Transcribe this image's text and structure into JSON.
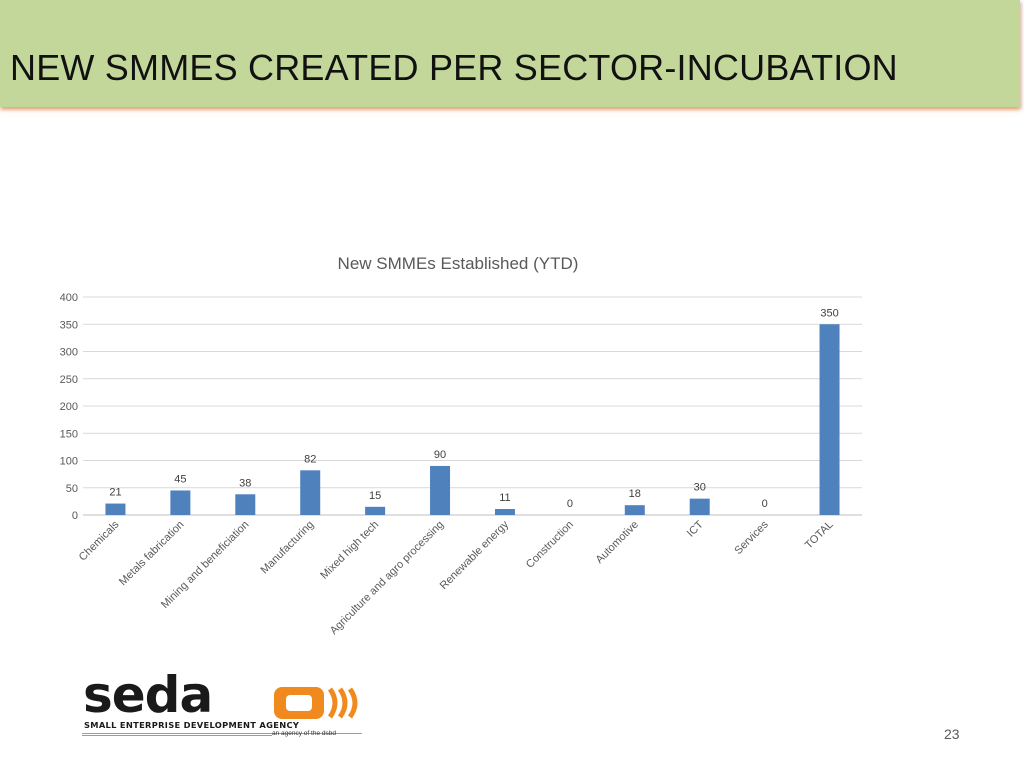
{
  "slide": {
    "title": "NEW SMMES CREATED PER SECTOR-INCUBATION",
    "page_number": "23"
  },
  "logo": {
    "wordmark": "seda",
    "tagline": "SMALL ENTERPRISE DEVELOPMENT AGENCY",
    "subline": "an agency of the dsbd",
    "colors": {
      "text": "#1a1a1a",
      "orange": "#f08a1e",
      "green": "#8fb04a"
    }
  },
  "colors": {
    "title_bar": "#c4d79b",
    "bar": "#4f81bd",
    "gridline": "#d9d9d9",
    "axis_text": "#595959"
  },
  "chart_data": {
    "type": "bar",
    "title": "New SMMEs Established (YTD)",
    "xlabel": "",
    "ylabel": "",
    "categories": [
      "Chemicals",
      "Metals fabrication",
      "Mining and beneficiation",
      "Manufacturing",
      "Mixed high tech",
      "Agriculture and agro processing",
      "Renewable energy",
      "Construction",
      "Automotive",
      "ICT",
      "Services",
      "TOTAL"
    ],
    "values": [
      21,
      45,
      38,
      82,
      15,
      90,
      11,
      0,
      18,
      30,
      0,
      350
    ],
    "ylim": [
      0,
      400
    ],
    "yticks": [
      0,
      50,
      100,
      150,
      200,
      250,
      300,
      350,
      400
    ],
    "grid": true,
    "data_labels": true,
    "legend": "none"
  }
}
